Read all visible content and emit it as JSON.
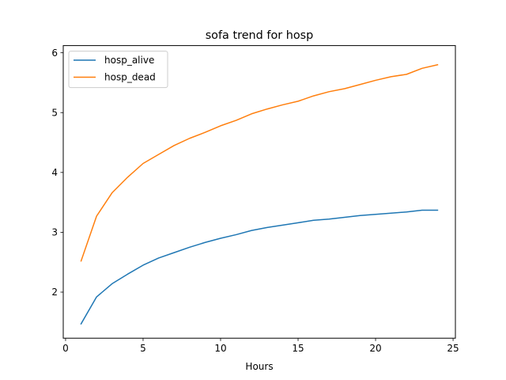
{
  "chart_data": {
    "type": "line",
    "title": "sofa trend for hosp",
    "xlabel": "Hours",
    "ylabel": "",
    "xlim": [
      -0.15,
      25.15
    ],
    "ylim": [
      1.23,
      6.12
    ],
    "xticks": [
      0,
      5,
      10,
      15,
      20,
      25
    ],
    "yticks": [
      2,
      3,
      4,
      5,
      6
    ],
    "grid": false,
    "legend_position": "top-left",
    "x": [
      1,
      2,
      3,
      4,
      5,
      6,
      7,
      8,
      9,
      10,
      11,
      12,
      13,
      14,
      15,
      16,
      17,
      18,
      19,
      20,
      21,
      22,
      23,
      24
    ],
    "series": [
      {
        "name": "hosp_alive",
        "color": "#1f77b4",
        "values": [
          1.47,
          1.92,
          2.14,
          2.3,
          2.45,
          2.57,
          2.66,
          2.75,
          2.83,
          2.9,
          2.96,
          3.03,
          3.08,
          3.12,
          3.16,
          3.2,
          3.22,
          3.25,
          3.28,
          3.3,
          3.32,
          3.34,
          3.37,
          3.37
        ]
      },
      {
        "name": "hosp_dead",
        "color": "#ff7f0e",
        "values": [
          2.52,
          3.27,
          3.66,
          3.92,
          4.15,
          4.3,
          4.45,
          4.57,
          4.67,
          4.78,
          4.87,
          4.98,
          5.06,
          5.13,
          5.19,
          5.28,
          5.35,
          5.4,
          5.47,
          5.54,
          5.6,
          5.64,
          5.74,
          5.8
        ]
      }
    ]
  }
}
